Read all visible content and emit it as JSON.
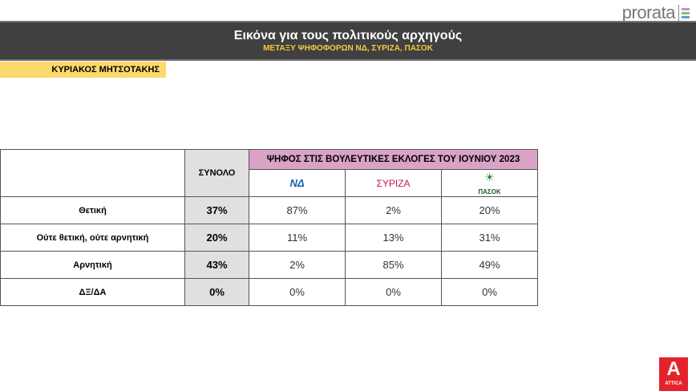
{
  "brand": {
    "name": "prorata",
    "colors": [
      "#d98ac8",
      "#7cc36e",
      "#5aa0d8"
    ]
  },
  "header": {
    "title": "Εικόνα για τους πολιτικούς αρχηγούς",
    "subtitle": "ΜΕΤΑΞΥ ΨΗΦΟΦΟΡΩΝ ΝΔ, ΣΥΡΙΖΑ, ΠΑΣΟΚ"
  },
  "leader": "ΚΥΡΙΑΚΟΣ ΜΗΤΣΟΤΑΚΗΣ",
  "table": {
    "total_header": "ΣΥΝΟΛΟ",
    "group_header": "ΨΗΦΟΣ ΣΤΙΣ ΒΟΥΛΕΥΤΙΚΕΣ ΕΚΛΟΓΕΣ ΤΟΥ ΙΟΥΝΙΟΥ 2023",
    "parties": [
      "ΝΔ",
      "ΣΥΡΙΖΑ",
      "ΠΑΣΟΚ"
    ],
    "rows": [
      {
        "label": "Θετική",
        "total": "37%",
        "values": [
          "87%",
          "2%",
          "20%"
        ]
      },
      {
        "label": "Ούτε θετική, ούτε αρνητική",
        "total": "20%",
        "values": [
          "11%",
          "13%",
          "31%"
        ]
      },
      {
        "label": "Αρνητική",
        "total": "43%",
        "values": [
          "2%",
          "85%",
          "49%"
        ]
      },
      {
        "label": "ΔΞ/ΔΑ",
        "total": "0%",
        "values": [
          "0%",
          "0%",
          "0%"
        ]
      }
    ]
  },
  "channel": {
    "name": "ATTICA",
    "letter": "A"
  }
}
